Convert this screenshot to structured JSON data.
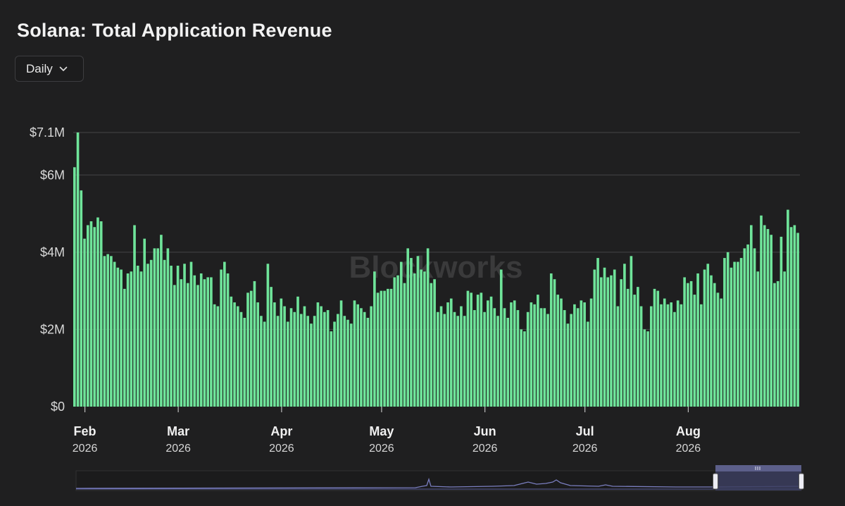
{
  "header": {
    "title": "Solana: Total Application Revenue"
  },
  "controls": {
    "period_label": "Daily",
    "period_icon": "chevron-down-icon"
  },
  "watermark": "Blockworks",
  "colors": {
    "bar": "#6fe49a",
    "background": "#1f1f20",
    "navigator_window": "#3b3d5e"
  },
  "chart_data": {
    "type": "bar",
    "title": "Solana: Total Application Revenue",
    "xlabel": "",
    "ylabel": "",
    "ylim": [
      0,
      7100000
    ],
    "y_ticks": [
      {
        "value": 0,
        "label": "$0"
      },
      {
        "value": 2000000,
        "label": "$2M"
      },
      {
        "value": 4000000,
        "label": "$4M"
      },
      {
        "value": 6000000,
        "label": "$6M"
      },
      {
        "value": 7100000,
        "label": "$7.1M"
      }
    ],
    "x_ticks": [
      {
        "month": "Feb",
        "year": "2026",
        "date": "2026-02-01"
      },
      {
        "month": "Mar",
        "year": "2026",
        "date": "2026-03-01"
      },
      {
        "month": "Apr",
        "year": "2026",
        "date": "2026-04-01"
      },
      {
        "month": "May",
        "year": "2026",
        "date": "2026-05-01"
      },
      {
        "month": "Jun",
        "year": "2026",
        "date": "2026-06-01"
      },
      {
        "month": "Jul",
        "year": "2026",
        "date": "2026-07-01"
      },
      {
        "month": "Aug",
        "year": "2026",
        "date": "2026-08-01"
      }
    ],
    "grid": true,
    "legend": "none",
    "start_date": "2026-01-29",
    "series": [
      {
        "values": [
          6200000,
          7100000,
          5600000,
          4350000,
          4700000,
          4800000,
          4650000,
          4900000,
          4800000,
          3900000,
          3950000,
          3900000,
          3750000,
          3600000,
          3550000,
          3050000,
          3450000,
          3500000,
          4700000,
          3650000,
          3500000,
          4350000,
          3700000,
          3800000,
          4100000,
          4100000,
          4450000,
          3800000,
          4100000,
          3650000,
          3150000,
          3650000,
          3300000,
          3700000,
          3200000,
          3750000,
          3400000,
          3150000,
          3450000,
          3300000,
          3350000,
          3350000,
          2650000,
          2600000,
          3550000,
          3750000,
          3450000,
          2850000,
          2700000,
          2600000,
          2450000,
          2300000,
          2950000,
          3000000,
          3250000,
          2700000,
          2350000,
          2200000,
          3700000,
          3100000,
          2700000,
          2350000,
          2800000,
          2600000,
          2200000,
          2550000,
          2450000,
          2850000,
          2400000,
          2600000,
          2350000,
          2150000,
          2350000,
          2700000,
          2600000,
          2450000,
          2500000,
          1950000,
          2200000,
          2400000,
          2750000,
          2350000,
          2250000,
          2150000,
          2750000,
          2650000,
          2550000,
          2450000,
          2300000,
          2600000,
          3500000,
          2950000,
          3000000,
          3000000,
          3050000,
          3050000,
          3350000,
          3400000,
          3750000,
          3200000,
          4100000,
          3850000,
          3450000,
          3900000,
          3550000,
          3500000,
          4100000,
          3200000,
          3300000,
          2450000,
          2600000,
          2400000,
          2700000,
          2800000,
          2450000,
          2350000,
          2600000,
          2350000,
          3000000,
          2950000,
          2500000,
          2900000,
          2950000,
          2450000,
          2750000,
          2850000,
          2550000,
          2350000,
          3550000,
          2550000,
          2300000,
          2700000,
          2750000,
          2500000,
          2000000,
          1950000,
          2450000,
          2700000,
          2650000,
          2900000,
          2550000,
          2550000,
          2400000,
          3450000,
          3300000,
          2900000,
          2800000,
          2500000,
          2150000,
          2400000,
          2650000,
          2550000,
          2750000,
          2700000,
          2200000,
          2800000,
          3550000,
          3850000,
          3350000,
          3600000,
          3350000,
          3400000,
          3550000,
          2600000,
          3300000,
          3700000,
          3050000,
          3900000,
          2900000,
          3100000,
          2600000,
          2000000,
          1950000,
          2600000,
          3050000,
          3000000,
          2650000,
          2800000,
          2650000,
          2700000,
          2450000,
          2750000,
          2650000,
          3350000,
          3200000,
          3250000,
          2900000,
          3450000,
          2650000,
          3550000,
          3700000,
          3400000,
          3200000,
          2950000,
          2800000,
          3850000,
          4000000,
          3600000,
          3750000,
          3750000,
          3850000,
          4100000,
          4200000,
          4700000,
          4100000,
          3500000,
          4950000,
          4700000,
          4600000,
          4450000,
          3200000,
          3250000,
          4400000,
          3500000,
          5100000,
          4650000,
          4700000,
          4500000
        ]
      }
    ]
  }
}
